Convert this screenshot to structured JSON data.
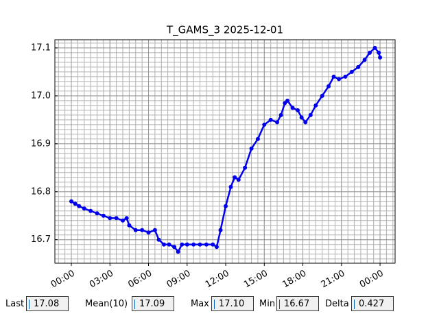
{
  "chart_data": {
    "type": "line",
    "title": "T_GAMS_3 2025-12-01",
    "x": [
      0.0,
      0.3,
      0.6,
      1.0,
      1.5,
      2.0,
      2.5,
      3.0,
      3.5,
      4.0,
      4.3,
      4.5,
      5.0,
      5.5,
      6.0,
      6.5,
      6.8,
      7.2,
      7.6,
      8.0,
      8.3,
      8.6,
      9.0,
      9.5,
      10.0,
      10.5,
      11.0,
      11.3,
      11.6,
      12.0,
      12.4,
      12.7,
      13.0,
      13.5,
      14.0,
      14.5,
      15.0,
      15.5,
      16.0,
      16.3,
      16.6,
      16.8,
      17.2,
      17.6,
      17.9,
      18.2,
      18.6,
      19.0,
      19.5,
      20.0,
      20.4,
      20.8,
      21.3,
      21.8,
      22.3,
      22.8,
      23.2,
      23.6,
      23.9,
      24.0
    ],
    "series": [
      {
        "color": "#0000ee",
        "values": [
          16.78,
          16.775,
          16.77,
          16.765,
          16.76,
          16.755,
          16.75,
          16.745,
          16.745,
          16.74,
          16.745,
          16.73,
          16.72,
          16.72,
          16.715,
          16.72,
          16.7,
          16.69,
          16.69,
          16.685,
          16.675,
          16.69,
          16.69,
          16.69,
          16.69,
          16.69,
          16.69,
          16.685,
          16.72,
          16.77,
          16.81,
          16.83,
          16.825,
          16.85,
          16.89,
          16.91,
          16.94,
          16.95,
          16.945,
          16.96,
          16.985,
          16.99,
          16.975,
          16.97,
          16.955,
          16.945,
          16.96,
          16.98,
          17.0,
          17.02,
          17.04,
          17.035,
          17.04,
          17.05,
          17.06,
          17.075,
          17.09,
          17.1,
          17.09,
          17.08
        ]
      }
    ],
    "xlim": [
      -1.28,
      25.17
    ],
    "ylim": [
      16.651,
      17.117
    ],
    "xticks": [
      {
        "value": 0,
        "label": "00:00"
      },
      {
        "value": 3,
        "label": "03:00"
      },
      {
        "value": 6,
        "label": "06:00"
      },
      {
        "value": 9,
        "label": "09:00"
      },
      {
        "value": 12,
        "label": "12:00"
      },
      {
        "value": 15,
        "label": "15:00"
      },
      {
        "value": 18,
        "label": "18:00"
      },
      {
        "value": 21,
        "label": "21:00"
      },
      {
        "value": 24,
        "label": "00:00"
      }
    ],
    "yticks": [
      16.7,
      16.8,
      16.9,
      {
        "value": 17.0,
        "label": "17.0"
      },
      17.1
    ],
    "grid": true,
    "minor_grid": true
  },
  "fields": [
    {
      "label": "Last",
      "value": "17.08"
    },
    {
      "label": "Mean(10)",
      "value": "17.09"
    },
    {
      "label": "Max",
      "value": "17.10"
    },
    {
      "label": "Min",
      "value": "16.67"
    },
    {
      "label": "Delta",
      "value": "0.427"
    }
  ]
}
